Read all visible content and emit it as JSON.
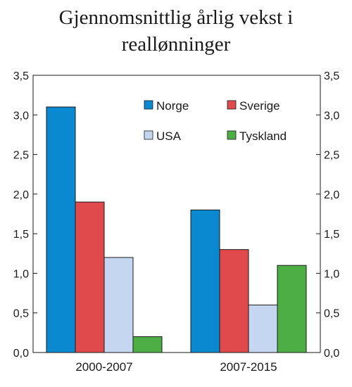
{
  "chart_data": {
    "type": "bar",
    "title_lines": [
      "Gjennomsnittlig årlig vekst i",
      "reallønninger"
    ],
    "categories": [
      "2000-2007",
      "2007-2015"
    ],
    "series": [
      {
        "name": "Norge",
        "color": "#0a89d0",
        "values": [
          3.1,
          1.8
        ]
      },
      {
        "name": "Sverige",
        "color": "#e04a4c",
        "values": [
          1.9,
          1.3
        ]
      },
      {
        "name": "USA",
        "color": "#c5d7f0",
        "values": [
          1.2,
          0.6
        ]
      },
      {
        "name": "Tyskland",
        "color": "#4cae45",
        "values": [
          0.2,
          1.1
        ]
      }
    ],
    "ylim": [
      0,
      3.5
    ],
    "yticks": [
      0,
      0.5,
      1.0,
      1.5,
      2.0,
      2.5,
      3.0,
      3.5
    ],
    "ytick_labels": [
      "0,0",
      "0,5",
      "1,0",
      "1,5",
      "2,0",
      "2,5",
      "3,0",
      "3,5"
    ],
    "dual_y_axis": true,
    "legend_position": "top-right",
    "grid": false
  }
}
